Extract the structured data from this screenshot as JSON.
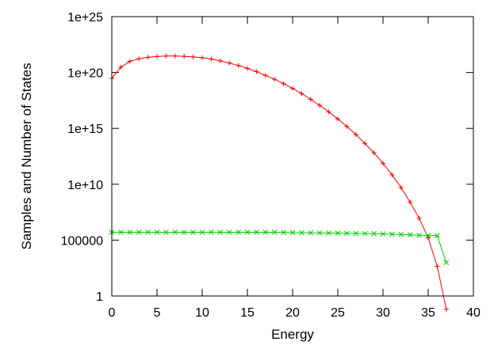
{
  "chart_data": {
    "type": "line",
    "xlabel": "Energy",
    "ylabel": "Samples and Number of States",
    "xlim": [
      0,
      40
    ],
    "ylim": [
      1,
      1e+25
    ],
    "yscale": "log",
    "grid": false,
    "x_ticks": [
      0,
      5,
      10,
      15,
      20,
      25,
      30,
      35,
      40
    ],
    "x_tick_labels": [
      "0",
      "5",
      "10",
      "15",
      "20",
      "25",
      "30",
      "35",
      "40"
    ],
    "y_ticks": [
      1,
      100000,
      10000000000.0,
      1000000000000000.0,
      1e+20,
      1e+25
    ],
    "y_tick_labels": [
      "1",
      "100000",
      "1e+10",
      "1e+15",
      "1e+20",
      "1e+25"
    ],
    "series": [
      {
        "color": "#ff0000",
        "marker": "plus",
        "x": [
          0,
          1,
          2,
          3,
          4,
          5,
          6,
          7,
          8,
          9,
          10,
          11,
          12,
          13,
          14,
          15,
          16,
          17,
          18,
          19,
          20,
          21,
          22,
          23,
          24,
          25,
          26,
          27,
          28,
          29,
          30,
          31,
          32,
          33,
          34,
          35,
          36,
          37
        ],
        "y": [
          3e+19,
          3e+20,
          1e+21,
          1.7e+21,
          2.3e+21,
          2.7e+21,
          3e+21,
          3e+21,
          2.8e+21,
          2.5e+21,
          2.1e+21,
          1.6e+21,
          1.1e+21,
          7e+20,
          4.2e+20,
          2.3e+20,
          1.2e+20,
          5.5e+19,
          2.5e+19,
          1e+19,
          3.8e+18,
          1.3e+18,
          4e+17,
          1.15e+17,
          3e+16,
          7000000000000000.0,
          1500000000000000.0,
          280000000000000.0,
          45000000000000.0,
          6500000000000.0,
          750000000000.0,
          70000000000.0,
          5000000000.0,
          250000000.0,
          9000000.0,
          160000.0,
          450.0,
          0.065
        ]
      },
      {
        "color": "#00cc00",
        "marker": "cross",
        "x": [
          0,
          1,
          2,
          3,
          4,
          5,
          6,
          7,
          8,
          9,
          10,
          11,
          12,
          13,
          14,
          15,
          16,
          17,
          18,
          19,
          20,
          21,
          22,
          23,
          24,
          25,
          26,
          27,
          28,
          29,
          30,
          31,
          32,
          33,
          34,
          35,
          36,
          37
        ],
        "y": [
          500000,
          500000,
          500000,
          500000,
          500000,
          500000,
          500000,
          500000,
          500000,
          500000,
          500000,
          500000,
          500000,
          500000,
          500000,
          500000,
          500000,
          500000,
          500000,
          480000,
          470000,
          460000,
          450000,
          440000,
          430000,
          420000,
          410000,
          400000,
          390000,
          380000,
          360000,
          340000,
          320000,
          300000,
          270000,
          260000,
          250000,
          1000
        ]
      }
    ]
  }
}
